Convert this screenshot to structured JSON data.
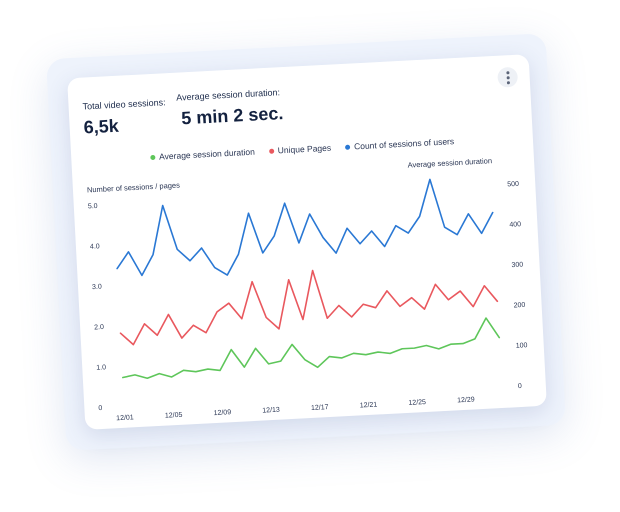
{
  "stats": {
    "sessions_label": "Total video sessions:",
    "sessions_value": "6,5k",
    "duration_label": "Average session duration:",
    "duration_value": "5 min 2 sec."
  },
  "legend": [
    {
      "label": "Average session duration",
      "color": "#5ec65a"
    },
    {
      "label": "Unique Pages",
      "color": "#e9585e"
    },
    {
      "label": "Count of sessions of users",
      "color": "#2a78d4"
    }
  ],
  "chart_data": {
    "type": "line",
    "ylabel": "Number of sessions / pages",
    "y2label": "Average session duration",
    "ylim": [
      0,
      5
    ],
    "y2lim": [
      0,
      500
    ],
    "y_ticks": [
      "0",
      "1.0",
      "2.0",
      "3.0",
      "4.0",
      "5.0"
    ],
    "y2_ticks": [
      "0",
      "100",
      "200",
      "300",
      "400",
      "500"
    ],
    "x_ticks": [
      "12/01",
      "12/05",
      "12/09",
      "12/13",
      "12/17",
      "12/21",
      "12/25",
      "12/29"
    ],
    "x_tick_positions": [
      0,
      4,
      8,
      12,
      16,
      20,
      24,
      28
    ],
    "grid": false,
    "series": [
      {
        "name": "Count of sessions of users",
        "color": "#2a78d4",
        "values": [
          3.4,
          3.8,
          3.2,
          3.7,
          4.9,
          3.8,
          3.5,
          3.8,
          3.3,
          3.1,
          3.6,
          4.6,
          3.6,
          4.0,
          4.8,
          3.8,
          4.5,
          3.9,
          3.5,
          4.1,
          3.7,
          4.0,
          3.6,
          4.1,
          3.9,
          4.3,
          5.2,
          4.0,
          3.8,
          4.3,
          3.8,
          4.3
        ]
      },
      {
        "name": "Unique Pages",
        "color": "#e9585e",
        "values": [
          1.8,
          1.5,
          2.0,
          1.7,
          2.2,
          1.6,
          1.9,
          1.7,
          2.2,
          2.4,
          2.0,
          2.9,
          2.0,
          1.7,
          2.9,
          1.9,
          3.1,
          1.9,
          2.2,
          1.9,
          2.2,
          2.1,
          2.5,
          2.1,
          2.3,
          2.0,
          2.6,
          2.2,
          2.4,
          2.0,
          2.5,
          2.1
        ]
      },
      {
        "name": "Average session duration",
        "color": "#5ec65a",
        "values": [
          0.7,
          0.75,
          0.65,
          0.75,
          0.65,
          0.8,
          0.75,
          0.8,
          0.75,
          1.25,
          0.8,
          1.25,
          0.85,
          0.9,
          1.3,
          0.9,
          0.7,
          0.95,
          0.9,
          1.0,
          0.95,
          1.0,
          0.95,
          1.05,
          1.05,
          1.1,
          1.0,
          1.1,
          1.1,
          1.2,
          1.7,
          1.2
        ]
      }
    ]
  }
}
